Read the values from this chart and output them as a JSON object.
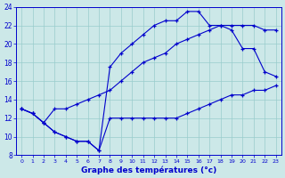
{
  "xlabel": "Graphe des températures (°c)",
  "bg_color": "#cce8e8",
  "line_color": "#0000cc",
  "grid_color": "#99cccc",
  "xmin": 0,
  "xmax": 23,
  "ymin": 8,
  "ymax": 24,
  "line_top": [
    13,
    12.5,
    11.5,
    10.5,
    10,
    9.5,
    9.5,
    8.5,
    17.5,
    19,
    20,
    21,
    22,
    22.5,
    22.5,
    23.5,
    23.5,
    22,
    22,
    21.5,
    19.5,
    19.5,
    17,
    16.5
  ],
  "line_mid": [
    13,
    12.5,
    11.5,
    13,
    13,
    13.5,
    14,
    14.5,
    15,
    16,
    17,
    18,
    18.5,
    19,
    20,
    20.5,
    21,
    21.5,
    22,
    22,
    22,
    22,
    21.5,
    21.5
  ],
  "line_bot": [
    13,
    12.5,
    11.5,
    10.5,
    10,
    9.5,
    9.5,
    8.5,
    12,
    12,
    12,
    12,
    12,
    12,
    12,
    12.5,
    13,
    13.5,
    14,
    14.5,
    14.5,
    15,
    15,
    15.5
  ]
}
